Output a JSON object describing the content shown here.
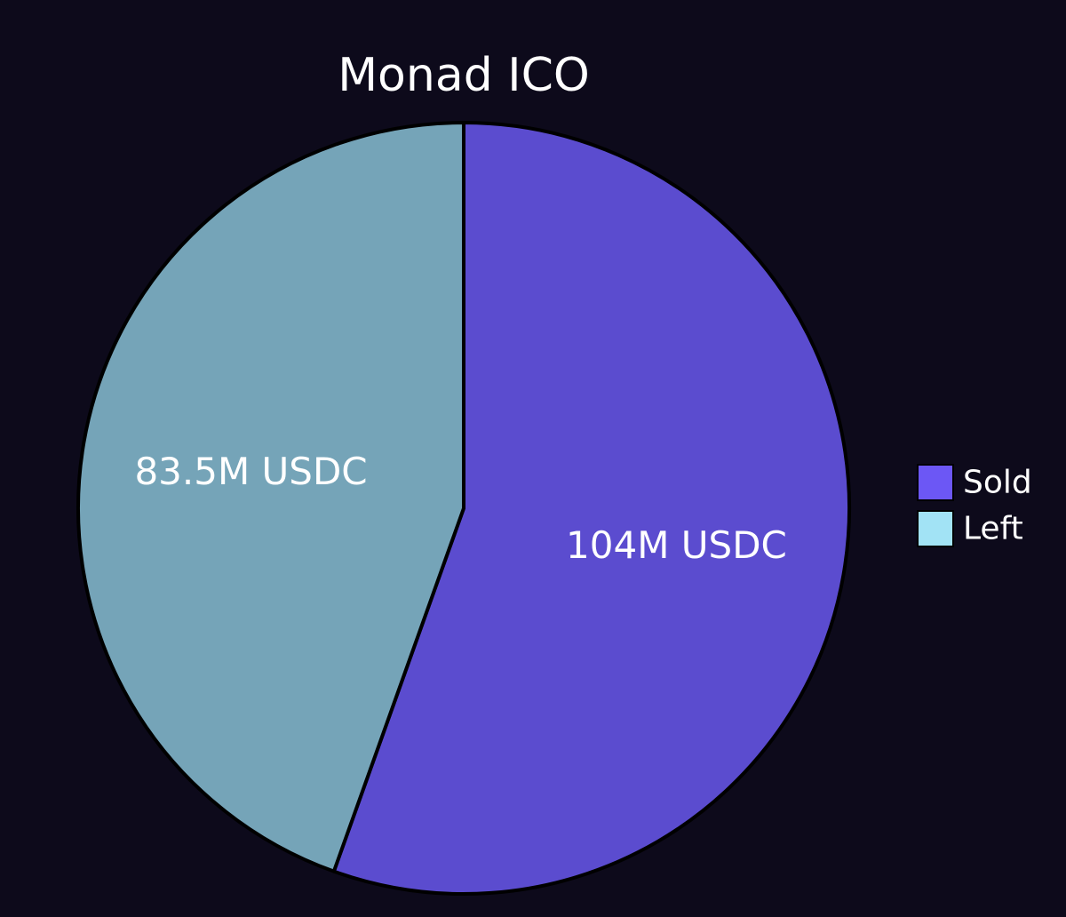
{
  "chart_data": {
    "type": "pie",
    "title": "Monad ICO",
    "slices": [
      {
        "name": "Sold",
        "value": 104,
        "label": "104M USDC",
        "color": "#5b4ccf",
        "legend_color": "#6c57f5"
      },
      {
        "name": "Left",
        "value": 83.5,
        "label": "83.5M USDC",
        "color": "#75a4b8",
        "legend_color": "#a2e3f5"
      }
    ],
    "start_angle": "12 o'clock",
    "direction": "clockwise",
    "legend_position": "right"
  },
  "colors": {
    "background": "#0d0a1b",
    "outline": "#000000",
    "text": "#ffffff"
  }
}
